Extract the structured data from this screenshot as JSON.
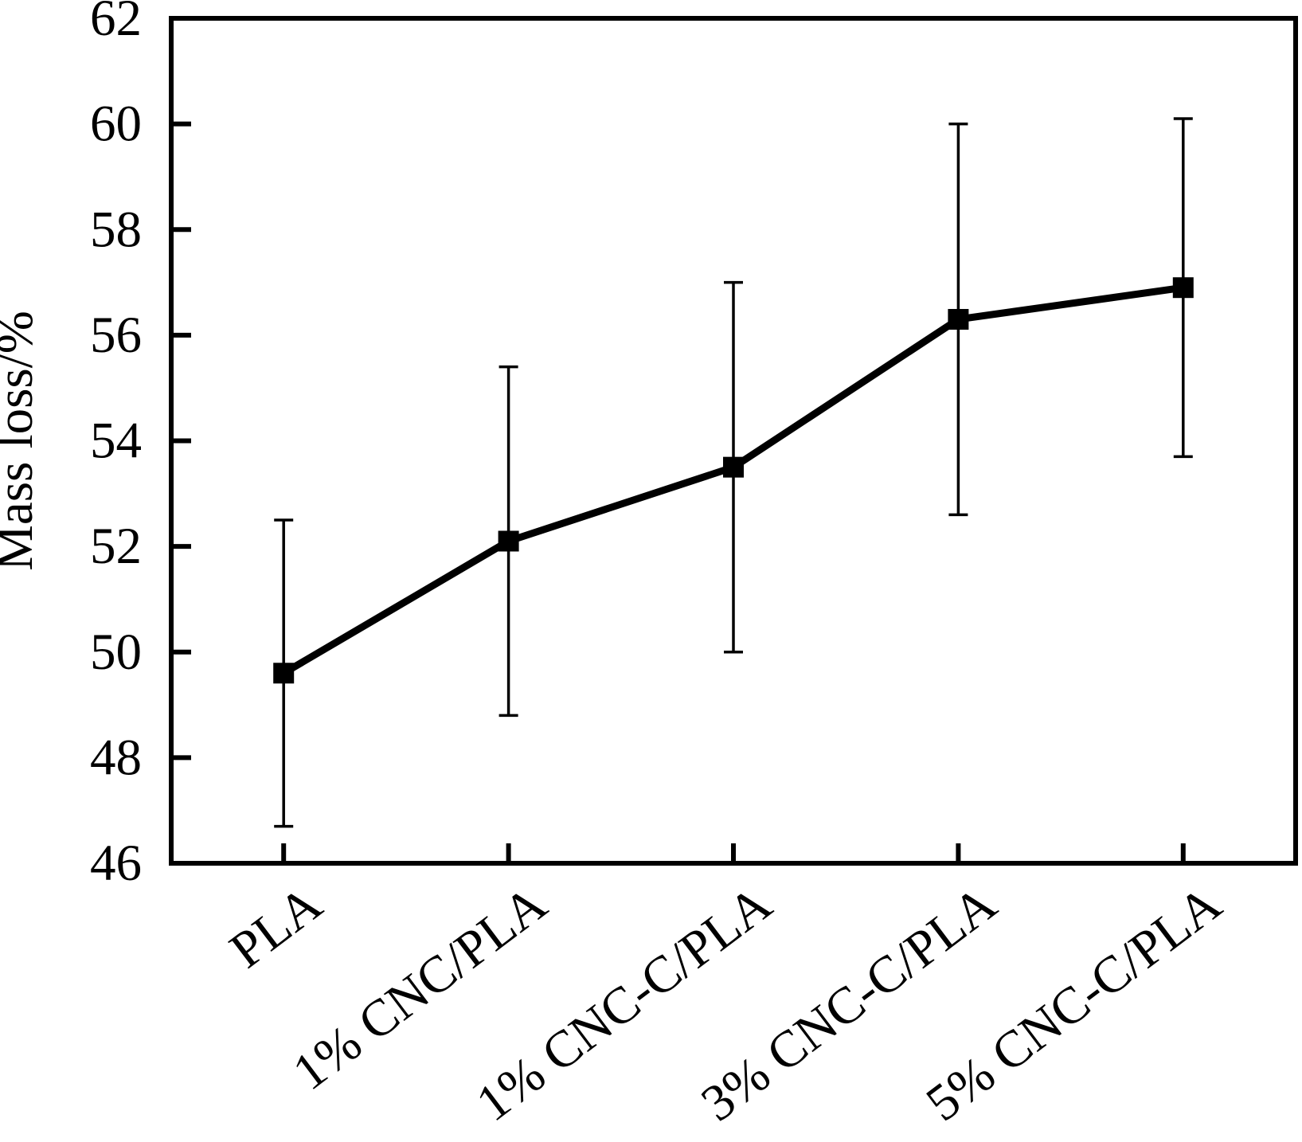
{
  "figure": {
    "background": "#ffffff",
    "foreground": "#000000"
  },
  "chart_data": {
    "type": "line",
    "title": "",
    "xlabel": "",
    "ylabel": "Mass loss/%",
    "categories": [
      "PLA",
      "1% CNC/PLA",
      "1% CNC-C/PLA",
      "3% CNC-C/PLA",
      "5% CNC-C/PLA"
    ],
    "series": [
      {
        "name": "Mass loss",
        "values": [
          49.6,
          52.1,
          53.5,
          56.3,
          56.9
        ],
        "error_upper": [
          52.5,
          55.4,
          57.0,
          60.0,
          60.1
        ],
        "error_lower": [
          46.7,
          48.8,
          50.0,
          52.6,
          53.7
        ]
      }
    ],
    "ylim": [
      46,
      62
    ],
    "yticks": [
      46,
      48,
      50,
      52,
      54,
      56,
      58,
      60,
      62
    ],
    "ytick_labels": [
      "46",
      "48",
      "50",
      "52",
      "54",
      "56",
      "58",
      "60",
      "62"
    ],
    "x_tick_rotation_deg": 37,
    "marker": "filled-square",
    "line_color": "#000000",
    "marker_color": "#000000",
    "error_bar_color": "#000000",
    "grid": false,
    "legend": null
  }
}
